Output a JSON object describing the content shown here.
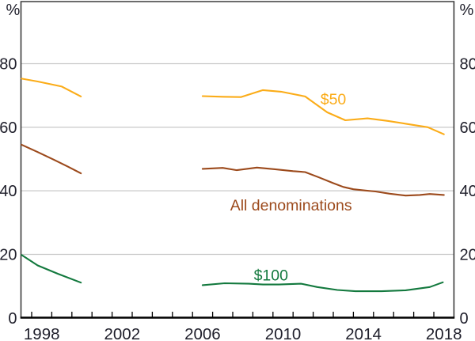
{
  "figure": {
    "background": "#ffffff"
  },
  "chart_data": {
    "type": "line",
    "title": "",
    "unit_label_left": "%",
    "unit_label_right": "%",
    "y_axis": {
      "ticks": [
        0,
        20,
        40,
        60,
        80
      ],
      "grid_ticks": [
        20,
        40,
        60,
        80
      ],
      "range": [
        0,
        99.6
      ],
      "grid": true
    },
    "x_axis": {
      "labeled_years": [
        1998,
        2002,
        2006,
        2010,
        2014,
        2018
      ],
      "minor_tick_start_year": 1998,
      "minor_tick_end_year": 2018,
      "range_years": [
        1997.47,
        2019
      ]
    },
    "colors": {
      "axis_text": "#20202C",
      "grid": "#C8C8C8",
      "frame": "#3B3B3B",
      "baseline": "#000000"
    },
    "series": [
      {
        "name": "$50",
        "color": "#FBAC18",
        "label": {
          "text": "$50",
          "at_year": 2013.0,
          "at_value": 68.9
        },
        "segments": [
          [
            [
              1997.5,
              75.3
            ],
            [
              1998.3,
              74.4
            ],
            [
              1999.5,
              72.8
            ],
            [
              2000.45,
              69.7
            ]
          ],
          [
            [
              2006.5,
              69.8
            ],
            [
              2007.5,
              69.6
            ],
            [
              2008.4,
              69.5
            ],
            [
              2009.5,
              71.7
            ],
            [
              2010.4,
              71.2
            ],
            [
              2011.6,
              69.7
            ],
            [
              2012.7,
              64.7
            ],
            [
              2013.6,
              62.2
            ],
            [
              2014.7,
              62.8
            ],
            [
              2015.7,
              62.0
            ],
            [
              2016.7,
              61.0
            ],
            [
              2017.7,
              60.0
            ],
            [
              2018.5,
              57.8
            ]
          ]
        ]
      },
      {
        "name": "All denominations",
        "color": "#9C4A1C",
        "label": {
          "text": "All denominations",
          "at_year": 2010.9,
          "at_value": 35.5
        },
        "segments": [
          [
            [
              1997.5,
              54.5
            ],
            [
              1998.3,
              52.2
            ],
            [
              1999.1,
              49.8
            ],
            [
              1999.8,
              47.6
            ],
            [
              2000.45,
              45.5
            ]
          ],
          [
            [
              2006.5,
              46.9
            ],
            [
              2007.5,
              47.2
            ],
            [
              2008.2,
              46.5
            ],
            [
              2009.2,
              47.3
            ],
            [
              2010.1,
              46.8
            ],
            [
              2011.0,
              46.2
            ],
            [
              2011.6,
              45.9
            ],
            [
              2012.3,
              44.2
            ],
            [
              2013.0,
              42.4
            ],
            [
              2013.5,
              41.2
            ],
            [
              2014.0,
              40.5
            ],
            [
              2014.6,
              40.1
            ],
            [
              2015.1,
              39.8
            ],
            [
              2015.8,
              39.1
            ],
            [
              2016.6,
              38.5
            ],
            [
              2017.3,
              38.7
            ],
            [
              2017.8,
              39.0
            ],
            [
              2018.5,
              38.7
            ]
          ]
        ]
      },
      {
        "name": "$100",
        "color": "#13793E",
        "label": {
          "text": "$100",
          "at_year": 2009.9,
          "at_value": 13.5
        },
        "segments": [
          [
            [
              1997.5,
              19.8
            ],
            [
              1998.3,
              16.5
            ],
            [
              1999.3,
              13.9
            ],
            [
              2000.45,
              11.1
            ]
          ],
          [
            [
              2006.5,
              10.3
            ],
            [
              2007.6,
              10.9
            ],
            [
              2008.8,
              10.75
            ],
            [
              2009.5,
              10.5
            ],
            [
              2010.3,
              10.5
            ],
            [
              2011.4,
              10.75
            ],
            [
              2012.2,
              9.7
            ],
            [
              2013.2,
              8.8
            ],
            [
              2014.1,
              8.4
            ],
            [
              2015.4,
              8.4
            ],
            [
              2016.6,
              8.7
            ],
            [
              2017.8,
              9.7
            ],
            [
              2018.45,
              11.2
            ]
          ]
        ]
      }
    ]
  }
}
